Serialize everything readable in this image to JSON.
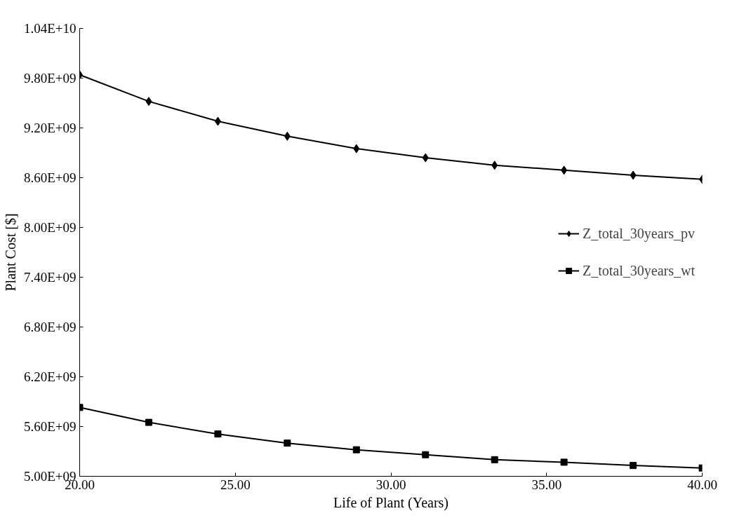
{
  "chart_data": {
    "type": "line",
    "xlabel": "Life of Plant (Years)",
    "ylabel": "Plant Cost [$]",
    "x": [
      20,
      22.22,
      24.44,
      26.67,
      28.89,
      31.11,
      33.33,
      35.56,
      37.78,
      40
    ],
    "series": [
      {
        "name": "Z_total_30years_pv",
        "color": "#000000",
        "marker": "diamond",
        "values": [
          9840000000.0,
          9520000000.0,
          9280000000.0,
          9100000000.0,
          8950000000.0,
          8840000000.0,
          8750000000.0,
          8690000000.0,
          8630000000.0,
          8580000000.0
        ]
      },
      {
        "name": "Z_total_30years_wt",
        "color": "#000000",
        "marker": "square",
        "values": [
          5830000000.0,
          5650000000.0,
          5510000000.0,
          5400000000.0,
          5320000000.0,
          5260000000.0,
          5200000000.0,
          5170000000.0,
          5130000000.0,
          5100000000.0
        ]
      }
    ],
    "xlim": [
      20,
      40
    ],
    "ylim": [
      5000000000.0,
      10400000000.0
    ],
    "xticks": [
      {
        "value": 20,
        "label": "20.00"
      },
      {
        "value": 25,
        "label": "25.00"
      },
      {
        "value": 30,
        "label": "30.00"
      },
      {
        "value": 35,
        "label": "35.00"
      },
      {
        "value": 40,
        "label": "40.00"
      }
    ],
    "yticks": [
      {
        "value": 5000000000.0,
        "label": "5.00E+09"
      },
      {
        "value": 5600000000.0,
        "label": "5.60E+09"
      },
      {
        "value": 6200000000.0,
        "label": "6.20E+09"
      },
      {
        "value": 6800000000.0,
        "label": "6.80E+09"
      },
      {
        "value": 7400000000.0,
        "label": "7.40E+09"
      },
      {
        "value": 8000000000.0,
        "label": "8.00E+09"
      },
      {
        "value": 8600000000.0,
        "label": "8.60E+09"
      },
      {
        "value": 9200000000.0,
        "label": "9.20E+09"
      },
      {
        "value": 9800000000.0,
        "label": "9.80E+09"
      },
      {
        "value": 10400000000.0,
        "label": "1.04E+10"
      }
    ],
    "grid": false,
    "legend": "right",
    "line_style": "solid"
  }
}
